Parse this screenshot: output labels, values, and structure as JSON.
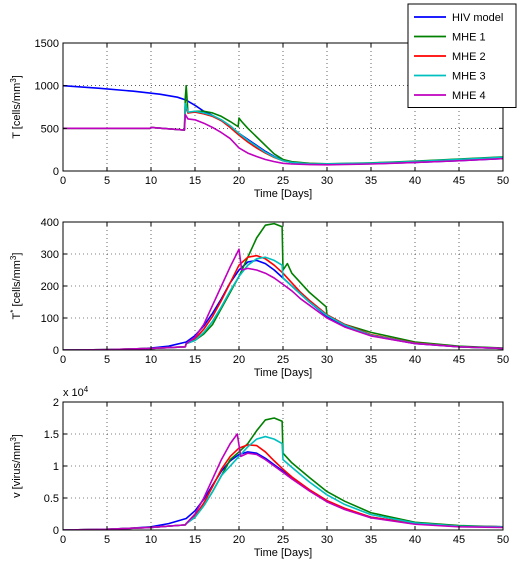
{
  "chart_data": [
    {
      "type": "line",
      "title": "",
      "xlabel": "Time [Days]",
      "ylabel": "T [cells/mm³]",
      "ylabel_parts": {
        "main": "T [cells/mm",
        "sup": "3",
        "tail": "]"
      },
      "xlim": [
        0,
        50
      ],
      "ylim": [
        0,
        1500
      ],
      "xticks": [
        0,
        5,
        10,
        15,
        20,
        25,
        30,
        35,
        40,
        45,
        50
      ],
      "yticks": [
        0,
        500,
        1000,
        1500
      ],
      "grid": true,
      "legend": {
        "placement": "top-right"
      },
      "series": [
        {
          "name": "HIV model",
          "color": "#0000ff",
          "x": [
            0,
            4,
            8,
            11,
            13,
            14,
            15,
            16,
            17,
            18,
            19,
            20,
            21,
            22,
            23,
            24,
            25,
            26,
            28,
            30,
            35,
            40,
            45,
            50
          ],
          "y": [
            1000,
            970,
            935,
            900,
            865,
            830,
            770,
            700,
            650,
            590,
            520,
            440,
            370,
            300,
            230,
            170,
            125,
            100,
            80,
            78,
            85,
            100,
            120,
            145
          ]
        },
        {
          "name": "MHE 1",
          "color": "#008000",
          "x": [
            0,
            9.9,
            10,
            13.8,
            13.9,
            14,
            14.2,
            15,
            16,
            17,
            18,
            19,
            19.9,
            20,
            20.3,
            21,
            22,
            23,
            24,
            25,
            26,
            28,
            30,
            35,
            40,
            45,
            50
          ],
          "y": [
            500,
            500,
            510,
            480,
            860,
            1000,
            680,
            700,
            700,
            680,
            640,
            580,
            520,
            620,
            580,
            500,
            400,
            300,
            200,
            135,
            110,
            90,
            85,
            95,
            115,
            140,
            165
          ]
        },
        {
          "name": "MHE 2",
          "color": "#ff0000",
          "x": [
            0,
            9.9,
            10,
            13.8,
            13.9,
            14.2,
            15,
            16,
            17,
            18,
            19,
            20,
            21,
            22,
            23,
            24,
            25,
            26,
            28,
            30,
            35,
            40,
            45,
            50
          ],
          "y": [
            500,
            500,
            510,
            480,
            760,
            680,
            690,
            670,
            640,
            590,
            510,
            420,
            340,
            270,
            210,
            160,
            120,
            100,
            82,
            80,
            88,
            105,
            125,
            150
          ]
        },
        {
          "name": "MHE 3",
          "color": "#00bfbf",
          "x": [
            0,
            9.9,
            10,
            13.8,
            13.9,
            14.2,
            15,
            16,
            17,
            18,
            19,
            20,
            21,
            22,
            23,
            24,
            25,
            26,
            28,
            30,
            35,
            40,
            45,
            50
          ],
          "y": [
            500,
            500,
            510,
            480,
            790,
            690,
            700,
            680,
            650,
            600,
            530,
            440,
            360,
            290,
            220,
            165,
            120,
            100,
            85,
            83,
            92,
            110,
            135,
            160
          ]
        },
        {
          "name": "MHE 4",
          "color": "#bf00bf",
          "x": [
            0,
            9.9,
            10,
            13.8,
            13.9,
            14.2,
            15,
            16,
            17,
            18,
            19,
            20,
            21,
            22,
            23,
            24,
            25,
            26,
            28,
            30,
            35,
            40,
            45,
            50
          ],
          "y": [
            500,
            500,
            510,
            480,
            660,
            610,
            600,
            560,
            510,
            450,
            380,
            270,
            210,
            170,
            135,
            110,
            90,
            82,
            75,
            72,
            82,
            100,
            120,
            145
          ]
        }
      ]
    },
    {
      "type": "line",
      "title": "",
      "xlabel": "Time [Days]",
      "ylabel": "T* [cells/mm³]",
      "ylabel_parts": {
        "main": "T",
        "sup0": "*",
        "mid": " [cells/mm",
        "sup": "3",
        "tail": "]"
      },
      "xlim": [
        0,
        50
      ],
      "ylim": [
        0,
        400
      ],
      "xticks": [
        0,
        5,
        10,
        15,
        20,
        25,
        30,
        35,
        40,
        45,
        50
      ],
      "yticks": [
        0,
        100,
        200,
        300,
        400
      ],
      "grid": true,
      "series": [
        {
          "name": "HIV model",
          "color": "#0000ff",
          "x": [
            0,
            5,
            8,
            10,
            12,
            14,
            15,
            16,
            17,
            18,
            19,
            20,
            21,
            22,
            23,
            24,
            25,
            26,
            27,
            28,
            30,
            32,
            35,
            40,
            45,
            50
          ],
          "y": [
            0,
            1,
            3,
            6,
            12,
            25,
            45,
            75,
            115,
            160,
            210,
            250,
            275,
            280,
            270,
            250,
            225,
            200,
            175,
            150,
            105,
            75,
            45,
            20,
            10,
            5
          ]
        },
        {
          "name": "MHE 1",
          "color": "#008000",
          "x": [
            0,
            5,
            10,
            13.9,
            14,
            15,
            16,
            17,
            18,
            19,
            20,
            21,
            22,
            23,
            24,
            24.9,
            25,
            25.5,
            26,
            27,
            28,
            29.9,
            30,
            31,
            32,
            35,
            40,
            45,
            50
          ],
          "y": [
            0,
            1,
            5,
            10,
            20,
            30,
            50,
            80,
            130,
            180,
            230,
            290,
            350,
            390,
            395,
            385,
            250,
            270,
            240,
            210,
            180,
            135,
            110,
            95,
            80,
            55,
            25,
            12,
            6
          ]
        },
        {
          "name": "MHE 2",
          "color": "#ff0000",
          "x": [
            0,
            5,
            10,
            13.9,
            14,
            15,
            16,
            17,
            18,
            19,
            20,
            21,
            22,
            23,
            24,
            25,
            26,
            27,
            28,
            30,
            32,
            35,
            40,
            45,
            50
          ],
          "y": [
            0,
            1,
            5,
            10,
            20,
            35,
            65,
            105,
            155,
            210,
            265,
            290,
            295,
            285,
            265,
            240,
            210,
            180,
            155,
            110,
            80,
            48,
            22,
            10,
            5
          ]
        },
        {
          "name": "MHE 3",
          "color": "#00bfbf",
          "x": [
            0,
            5,
            10,
            13.9,
            14,
            15,
            16,
            17,
            18,
            19,
            20,
            21,
            22,
            23,
            24,
            24.9,
            25,
            26,
            27,
            28,
            30,
            32,
            35,
            40,
            45,
            50
          ],
          "y": [
            0,
            1,
            5,
            10,
            20,
            30,
            55,
            90,
            135,
            185,
            230,
            265,
            285,
            290,
            280,
            265,
            225,
            200,
            175,
            150,
            108,
            78,
            46,
            21,
            10,
            5
          ]
        },
        {
          "name": "MHE 4",
          "color": "#bf00bf",
          "x": [
            0,
            5,
            10,
            13.9,
            14,
            15,
            16,
            17,
            18,
            19,
            20,
            20.3,
            21,
            22,
            23,
            24,
            25,
            26,
            27,
            28,
            30,
            32,
            35,
            40,
            45,
            50
          ],
          "y": [
            0,
            1,
            5,
            10,
            20,
            40,
            80,
            140,
            200,
            260,
            315,
            250,
            255,
            250,
            240,
            225,
            205,
            185,
            160,
            140,
            100,
            72,
            44,
            20,
            10,
            5
          ]
        }
      ]
    },
    {
      "type": "line",
      "title": "",
      "xlabel": "Time [Days]",
      "ylabel": "v [virus/mm³]",
      "ylabel_parts": {
        "main": "v [virus/mm",
        "sup": "3",
        "tail": "]"
      },
      "scale_label": {
        "prefix": "x 10",
        "exp": "4"
      },
      "xlim": [
        0,
        50
      ],
      "ylim": [
        0,
        2
      ],
      "xticks": [
        0,
        5,
        10,
        15,
        20,
        25,
        30,
        35,
        40,
        45,
        50
      ],
      "yticks": [
        0,
        0.5,
        1,
        1.5,
        2
      ],
      "grid": true,
      "series": [
        {
          "name": "HIV model",
          "color": "#0000ff",
          "x": [
            0,
            5,
            8,
            10,
            12,
            14,
            15,
            16,
            17,
            18,
            19,
            20,
            21,
            22,
            23,
            24,
            25,
            26,
            28,
            30,
            32,
            35,
            40,
            45,
            50
          ],
          "y": [
            0,
            0.01,
            0.03,
            0.05,
            0.1,
            0.18,
            0.3,
            0.48,
            0.7,
            0.92,
            1.08,
            1.18,
            1.22,
            1.2,
            1.12,
            1.02,
            0.92,
            0.82,
            0.62,
            0.45,
            0.33,
            0.2,
            0.1,
            0.06,
            0.05
          ]
        },
        {
          "name": "MHE 1",
          "color": "#008000",
          "x": [
            0,
            5,
            10,
            13.9,
            14,
            15,
            16,
            17,
            18,
            19,
            20,
            21,
            22,
            23,
            24,
            24.9,
            25,
            26,
            28,
            30,
            32,
            35,
            40,
            45,
            50
          ],
          "y": [
            0,
            0.01,
            0.04,
            0.08,
            0.1,
            0.2,
            0.38,
            0.6,
            0.85,
            1.1,
            1.22,
            1.35,
            1.55,
            1.72,
            1.75,
            1.7,
            1.2,
            1.05,
            0.82,
            0.6,
            0.45,
            0.27,
            0.12,
            0.07,
            0.05
          ]
        },
        {
          "name": "MHE 2",
          "color": "#ff0000",
          "x": [
            0,
            5,
            10,
            13.9,
            14,
            15,
            16,
            17,
            18,
            19,
            20,
            21,
            22,
            23,
            24,
            25,
            26,
            28,
            30,
            32,
            35,
            40,
            45,
            50
          ],
          "y": [
            0,
            0.01,
            0.04,
            0.08,
            0.1,
            0.22,
            0.42,
            0.68,
            0.95,
            1.15,
            1.28,
            1.33,
            1.32,
            1.22,
            1.08,
            0.95,
            0.83,
            0.63,
            0.46,
            0.34,
            0.2,
            0.1,
            0.06,
            0.05
          ]
        },
        {
          "name": "MHE 3",
          "color": "#00bfbf",
          "x": [
            0,
            5,
            10,
            13.9,
            14,
            15,
            16,
            17,
            18,
            19,
            20,
            21,
            22,
            23,
            24,
            24.9,
            25,
            26,
            28,
            30,
            32,
            35,
            40,
            45,
            50
          ],
          "y": [
            0,
            0.01,
            0.04,
            0.08,
            0.1,
            0.2,
            0.38,
            0.6,
            0.85,
            1.0,
            1.15,
            1.3,
            1.42,
            1.46,
            1.42,
            1.35,
            1.1,
            0.98,
            0.75,
            0.55,
            0.4,
            0.24,
            0.11,
            0.06,
            0.05
          ]
        },
        {
          "name": "MHE 4",
          "color": "#bf00bf",
          "x": [
            0,
            5,
            10,
            13.9,
            14,
            15,
            16,
            17,
            18,
            19,
            19.8,
            20.2,
            21,
            22,
            23,
            24,
            25,
            26,
            28,
            30,
            32,
            35,
            40,
            45,
            50
          ],
          "y": [
            0,
            0.01,
            0.04,
            0.08,
            0.1,
            0.25,
            0.5,
            0.8,
            1.1,
            1.35,
            1.5,
            1.15,
            1.2,
            1.18,
            1.1,
            1.0,
            0.9,
            0.8,
            0.61,
            0.44,
            0.32,
            0.19,
            0.09,
            0.05,
            0.04
          ]
        }
      ]
    }
  ]
}
